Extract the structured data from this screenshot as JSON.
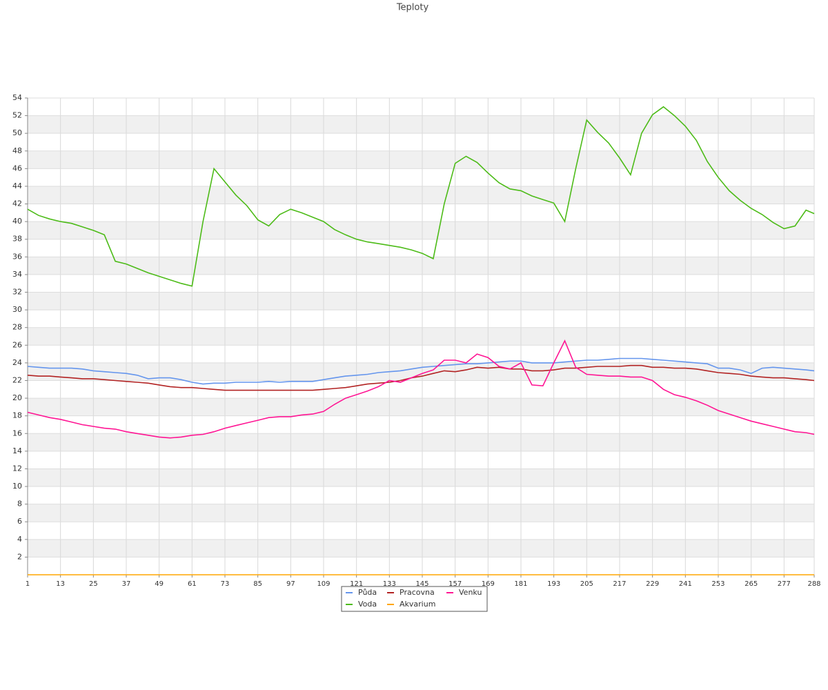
{
  "chart_data": {
    "type": "line",
    "title": "Teploty",
    "x": [
      1,
      5,
      9,
      13,
      17,
      21,
      25,
      29,
      33,
      37,
      41,
      45,
      49,
      53,
      57,
      61,
      65,
      69,
      73,
      77,
      81,
      85,
      89,
      93,
      97,
      101,
      105,
      109,
      113,
      117,
      121,
      125,
      129,
      133,
      137,
      141,
      145,
      149,
      153,
      157,
      161,
      165,
      169,
      173,
      177,
      181,
      185,
      189,
      193,
      197,
      201,
      205,
      209,
      213,
      217,
      221,
      225,
      229,
      233,
      237,
      241,
      245,
      249,
      253,
      257,
      261,
      265,
      269,
      273,
      277,
      281,
      285,
      288
    ],
    "xlim": [
      1,
      288
    ],
    "xticks": [
      1,
      13,
      25,
      37,
      49,
      61,
      73,
      85,
      97,
      109,
      121,
      133,
      145,
      157,
      169,
      181,
      193,
      205,
      217,
      229,
      241,
      253,
      265,
      277,
      288
    ],
    "ylim": [
      0,
      54
    ],
    "yticks": [
      2,
      4,
      6,
      8,
      10,
      12,
      14,
      16,
      18,
      20,
      22,
      24,
      26,
      28,
      30,
      32,
      34,
      36,
      38,
      40,
      42,
      44,
      46,
      48,
      50,
      52,
      54
    ],
    "grid": true,
    "series": [
      {
        "name": "Půda",
        "color": "#6495ed",
        "values": [
          23.6,
          23.5,
          23.4,
          23.4,
          23.4,
          23.3,
          23.1,
          23.0,
          22.9,
          22.8,
          22.6,
          22.2,
          22.3,
          22.3,
          22.1,
          21.8,
          21.6,
          21.7,
          21.7,
          21.8,
          21.8,
          21.8,
          21.9,
          21.8,
          21.9,
          21.9,
          21.9,
          22.1,
          22.3,
          22.5,
          22.6,
          22.7,
          22.9,
          23.0,
          23.1,
          23.3,
          23.5,
          23.6,
          23.7,
          23.8,
          23.9,
          23.9,
          24.0,
          24.1,
          24.2,
          24.2,
          24.0,
          24.0,
          24.0,
          24.1,
          24.2,
          24.3,
          24.3,
          24.4,
          24.5,
          24.5,
          24.5,
          24.4,
          24.3,
          24.2,
          24.1,
          24.0,
          23.9,
          23.4,
          23.4,
          23.2,
          22.8,
          23.4,
          23.5,
          23.4,
          23.3,
          23.2,
          23.1
        ]
      },
      {
        "name": "Pracovna",
        "color": "#b22222",
        "values": [
          22.6,
          22.5,
          22.5,
          22.4,
          22.3,
          22.2,
          22.2,
          22.1,
          22.0,
          21.9,
          21.8,
          21.7,
          21.5,
          21.3,
          21.2,
          21.2,
          21.1,
          21.0,
          20.9,
          20.9,
          20.9,
          20.9,
          20.9,
          20.9,
          20.9,
          20.9,
          20.9,
          21.0,
          21.1,
          21.2,
          21.4,
          21.6,
          21.7,
          21.8,
          22.0,
          22.3,
          22.5,
          22.8,
          23.1,
          23.0,
          23.2,
          23.5,
          23.4,
          23.5,
          23.3,
          23.3,
          23.1,
          23.1,
          23.2,
          23.4,
          23.4,
          23.5,
          23.6,
          23.6,
          23.6,
          23.7,
          23.7,
          23.5,
          23.5,
          23.4,
          23.4,
          23.3,
          23.1,
          22.9,
          22.8,
          22.7,
          22.5,
          22.4,
          22.3,
          22.3,
          22.2,
          22.1,
          22.0
        ]
      },
      {
        "name": "Venku",
        "color": "#ff1493",
        "values": [
          18.4,
          18.1,
          17.8,
          17.6,
          17.3,
          17.0,
          16.8,
          16.6,
          16.5,
          16.2,
          16.0,
          15.8,
          15.6,
          15.5,
          15.6,
          15.8,
          15.9,
          16.2,
          16.6,
          16.9,
          17.2,
          17.5,
          17.8,
          17.9,
          17.9,
          18.1,
          18.2,
          18.5,
          19.3,
          20.0,
          20.4,
          20.8,
          21.3,
          22.0,
          21.8,
          22.3,
          22.8,
          23.2,
          24.3,
          24.3,
          24.0,
          25.0,
          24.6,
          23.6,
          23.3,
          24.0,
          21.5,
          21.4,
          24.0,
          26.5,
          23.5,
          22.7,
          22.6,
          22.5,
          22.5,
          22.4,
          22.4,
          22.0,
          21.0,
          20.4,
          20.1,
          19.7,
          19.2,
          18.6,
          18.2,
          17.8,
          17.4,
          17.1,
          16.8,
          16.5,
          16.2,
          16.1,
          15.9
        ]
      },
      {
        "name": "Voda",
        "color": "#4cbb17",
        "values": [
          41.4,
          40.7,
          40.3,
          40.0,
          39.8,
          39.4,
          39.0,
          38.5,
          35.5,
          35.2,
          34.7,
          34.2,
          33.8,
          33.4,
          33.0,
          32.7,
          40.0,
          46.0,
          44.5,
          43.0,
          41.8,
          40.2,
          39.5,
          40.8,
          41.4,
          41.0,
          40.5,
          40.0,
          39.1,
          38.5,
          38.0,
          37.7,
          37.5,
          37.3,
          37.1,
          36.8,
          36.4,
          35.8,
          42.0,
          46.6,
          47.4,
          46.7,
          45.5,
          44.4,
          43.7,
          43.5,
          42.9,
          42.5,
          42.1,
          40.0,
          46.0,
          51.5,
          50.1,
          48.9,
          47.2,
          45.3,
          50.0,
          52.1,
          53.0,
          52.0,
          50.8,
          49.2,
          46.8,
          45.0,
          43.5,
          42.4,
          41.5,
          40.8,
          39.9,
          39.2,
          39.5,
          41.3,
          40.9
        ]
      },
      {
        "name": "Akvarium",
        "color": "#ffa500",
        "values": [
          0,
          0,
          0,
          0,
          0,
          0,
          0,
          0,
          0,
          0,
          0,
          0,
          0,
          0,
          0,
          0,
          0,
          0,
          0,
          0,
          0,
          0,
          0,
          0,
          0,
          0,
          0,
          0,
          0,
          0,
          0,
          0,
          0,
          0,
          0,
          0,
          0,
          0,
          0,
          0,
          0,
          0,
          0,
          0,
          0,
          0,
          0,
          0,
          0,
          0,
          0,
          0,
          0,
          0,
          0,
          0,
          0,
          0,
          0,
          0,
          0,
          0,
          0,
          0,
          0,
          0,
          0,
          0,
          0,
          0,
          0,
          0,
          0
        ]
      }
    ]
  }
}
